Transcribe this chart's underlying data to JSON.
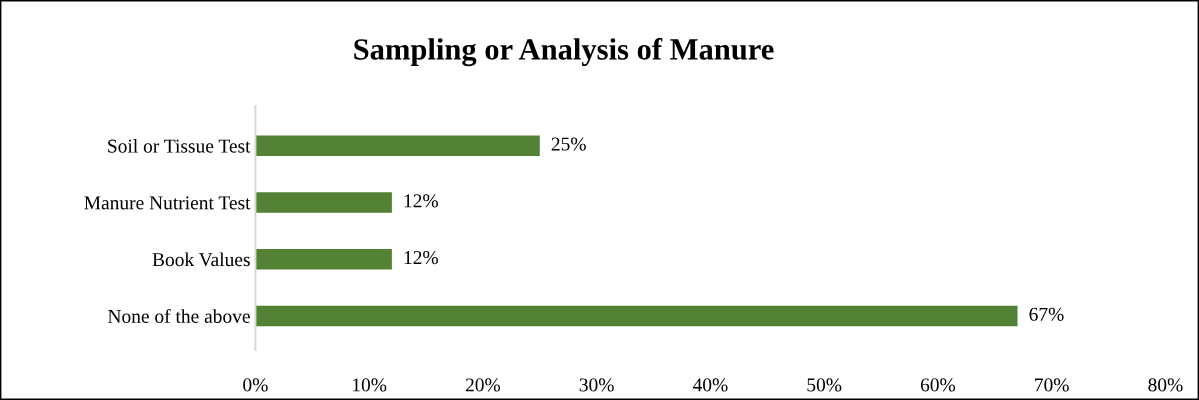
{
  "chart_data": {
    "type": "bar",
    "orientation": "horizontal",
    "title": "Sampling or Analysis of Manure",
    "categories": [
      "Soil or Tissue Test",
      "Manure Nutrient Test",
      "Book Values",
      "None of the above"
    ],
    "values": [
      25,
      12,
      12,
      67
    ],
    "color": "#548235",
    "value_labels": [
      "25%",
      "12%",
      "12%",
      "67%"
    ],
    "xlim": [
      0,
      80
    ],
    "xticks": [
      {
        "value": 0,
        "label": "0%"
      },
      {
        "value": 10,
        "label": "10%"
      },
      {
        "value": 20,
        "label": "20%"
      },
      {
        "value": 30,
        "label": "30%"
      },
      {
        "value": 40,
        "label": "40%"
      },
      {
        "value": 50,
        "label": "50%"
      },
      {
        "value": 60,
        "label": "60%"
      },
      {
        "value": 70,
        "label": "70%"
      },
      {
        "value": 80,
        "label": "80%"
      }
    ],
    "grid": false,
    "legend": false
  }
}
